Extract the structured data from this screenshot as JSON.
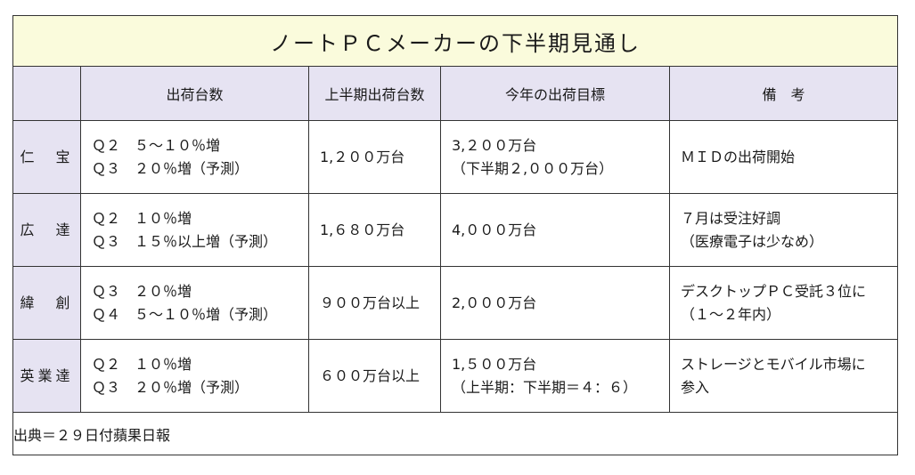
{
  "title": "ノートＰＣメーカーの下半期見通し",
  "headers": [
    "",
    "出荷台数",
    "上半期出荷台数",
    "今年の出荷目標",
    "備　考"
  ],
  "rows": [
    {
      "company": "仁　宝",
      "shipments": [
        "Ｑ２　５～１０％増",
        "Ｑ３　２０％増（予測）"
      ],
      "first_half": "1,２００万台",
      "target": [
        "3,２００万台",
        "（下半期２,０００万台）"
      ],
      "notes": [
        "ＭＩＤの出荷開始"
      ]
    },
    {
      "company": "広　達",
      "shipments": [
        "Ｑ２　１０％増",
        "Ｑ３　１５％以上増（予測）"
      ],
      "first_half": "1,６８０万台",
      "target": [
        "4,０００万台"
      ],
      "notes": [
        "７月は受注好調",
        "（医療電子は少なめ）"
      ]
    },
    {
      "company": "緯　創",
      "shipments": [
        "Ｑ３　２０％増",
        "Ｑ４　５～１０％増（予測）"
      ],
      "first_half": "９００万台以上",
      "target": [
        "2,０００万台"
      ],
      "notes": [
        "デスクトップＰＣ受託３位に",
        "（１～２年内）"
      ]
    },
    {
      "company": "英業達",
      "shipments": [
        "Ｑ２　１０％増",
        "Ｑ３　２０％増（予測）"
      ],
      "first_half": "６００万台以上",
      "target": [
        "1,５００万台",
        "（上半期：下半期＝４：６）"
      ],
      "notes": [
        "ストレージとモバイル市場に",
        "参入"
      ]
    }
  ],
  "source": "出典＝２９日付蘋果日報",
  "colors": {
    "title_bg": "#fafbdc",
    "header_bg": "#e6e3f2",
    "border": "#333333"
  }
}
